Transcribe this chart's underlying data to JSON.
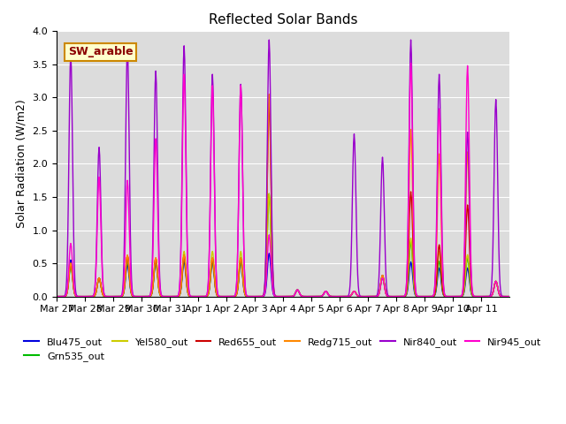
{
  "title": "Reflected Solar Bands",
  "ylabel": "Solar Radiation (W/m2)",
  "xlabel": "",
  "ylim": [
    0,
    4.0
  ],
  "bg_color": "#dcdcdc",
  "legend_box_text": "SW_arable",
  "series_names": [
    "Blu475_out",
    "Grn535_out",
    "Yel580_out",
    "Red655_out",
    "Redg715_out",
    "Nir840_out",
    "Nir945_out"
  ],
  "series_colors": [
    "#0000dd",
    "#00bb00",
    "#cccc00",
    "#cc0000",
    "#ff8800",
    "#9900cc",
    "#ff00cc"
  ],
  "xtick_labels": [
    "Mar 27",
    "Mar 28",
    "Mar 29",
    "Mar 30",
    "Mar 31",
    "Apr 1",
    "Apr 2",
    "Apr 3",
    "Apr 4",
    "Apr 5",
    "Apr 6",
    "Apr 7",
    "Apr 8",
    "Apr 9",
    "Apr 10",
    "Apr 11"
  ],
  "n_days": 16,
  "pts_per_day": 48,
  "day_peaks": [
    [
      0.55,
      0.45,
      0.5,
      0.5,
      0.5,
      3.65,
      0.8
    ],
    [
      0.28,
      0.28,
      0.28,
      0.28,
      0.28,
      2.25,
      1.8
    ],
    [
      0.48,
      0.55,
      0.62,
      0.62,
      0.62,
      3.75,
      1.75
    ],
    [
      0.52,
      0.52,
      0.58,
      0.58,
      0.58,
      3.4,
      2.38
    ],
    [
      0.52,
      0.58,
      0.68,
      0.62,
      0.62,
      3.78,
      3.35
    ],
    [
      0.52,
      0.52,
      0.68,
      0.58,
      0.58,
      3.35,
      3.18
    ],
    [
      0.52,
      0.52,
      0.68,
      0.58,
      0.58,
      3.2,
      3.18
    ],
    [
      0.65,
      1.55,
      1.55,
      2.9,
      3.05,
      3.87,
      0.93
    ],
    [
      0.1,
      0.1,
      0.1,
      0.1,
      0.1,
      0.1,
      0.1
    ],
    [
      0.08,
      0.08,
      0.08,
      0.08,
      0.08,
      0.08,
      0.08
    ],
    [
      0.08,
      0.08,
      0.08,
      0.08,
      0.08,
      2.45,
      0.08
    ],
    [
      0.32,
      0.28,
      0.32,
      0.32,
      0.32,
      2.1,
      0.28
    ],
    [
      0.52,
      0.82,
      0.88,
      1.58,
      2.52,
      3.87,
      3.52
    ],
    [
      0.43,
      0.53,
      0.68,
      0.78,
      2.15,
      3.35,
      2.83
    ],
    [
      0.43,
      0.58,
      0.63,
      1.38,
      2.18,
      2.48,
      3.48
    ],
    [
      0.23,
      0.23,
      0.23,
      0.23,
      0.23,
      2.97,
      0.23
    ]
  ]
}
